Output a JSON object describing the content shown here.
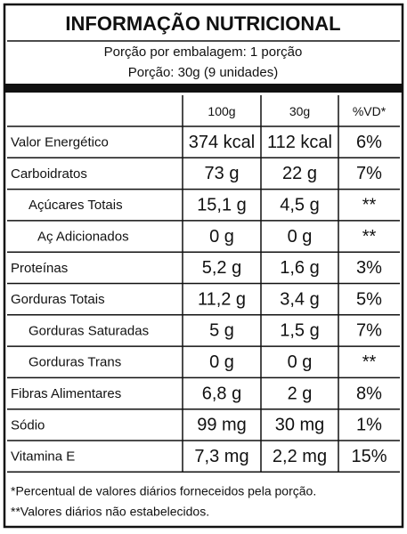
{
  "header": {
    "title": "INFORMAÇÃO NUTRICIONAL",
    "servings_per_package": "Porção por embalagem: 1 porção",
    "serving": "Porção: 30g (9 unidades)"
  },
  "table": {
    "columns": [
      "100g",
      "30g",
      "%VD*"
    ],
    "rows": [
      [
        "Valor Energético",
        "374 kcal",
        "112 kcal",
        "6%"
      ],
      [
        "Carboidratos",
        "73 g",
        "22 g",
        "7%"
      ],
      [
        "Açúcares Totais",
        "15,1 g",
        "4,5 g",
        "**"
      ],
      [
        "Aç Adicionados",
        "0 g",
        "0 g",
        "**"
      ],
      [
        "Proteínas",
        "5,2 g",
        "1,6 g",
        "3%"
      ],
      [
        "Gorduras Totais",
        "11,2 g",
        "3,4 g",
        "5%"
      ],
      [
        "Gorduras Saturadas",
        "5 g",
        "1,5 g",
        "7%"
      ],
      [
        "Gorduras Trans",
        "0 g",
        "0 g",
        "**"
      ],
      [
        "Fibras Alimentares",
        "6,8 g",
        "2 g",
        "8%"
      ],
      [
        "Sódio",
        "99 mg",
        "30 mg",
        "1%"
      ],
      [
        "Vitamina E",
        "7,3 mg",
        "2,2 mg",
        "15%"
      ]
    ]
  },
  "footnotes": [
    "*Percentual de valores diários forneceidos pela porção.",
    "**Valores diários não estabelecidos."
  ]
}
